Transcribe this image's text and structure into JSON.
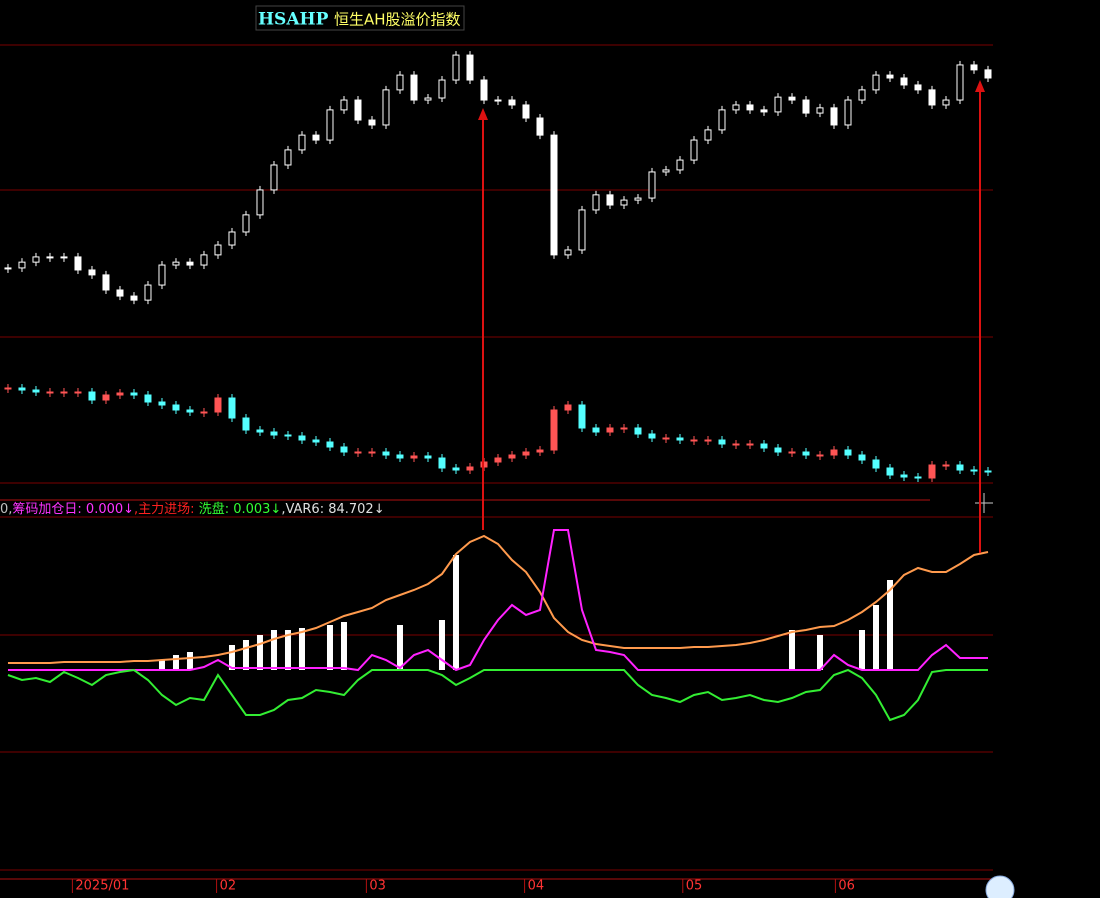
{
  "chart_data": [
    {
      "type": "candlestick",
      "title": "HSAHP",
      "subtitle": "恒生AH股溢价指数",
      "color": "#ffffff",
      "xlim": [
        -0.57,
        70.5
      ],
      "ylim": [
        0,
        100
      ],
      "values": [
        21.4,
        23.4,
        25.2,
        25.2,
        25.2,
        20.7,
        19.0,
        13.8,
        11.7,
        10.3,
        15.5,
        22.4,
        23.4,
        22.4,
        25.9,
        29.3,
        33.8,
        39.7,
        48.3,
        56.9,
        62.1,
        67.2,
        65.5,
        75.9,
        79.3,
        72.4,
        70.7,
        82.8,
        87.9,
        79.3,
        80.0,
        86.2,
        94.8,
        86.2,
        79.3,
        79.3,
        77.6,
        73.1,
        67.2,
        25.9,
        27.6,
        41.4,
        46.6,
        43.1,
        44.8,
        45.5,
        54.5,
        55.2,
        58.6,
        65.5,
        69.0,
        75.9,
        77.6,
        75.9,
        75.2,
        80.3,
        79.3,
        74.8,
        76.6,
        70.7,
        79.3,
        82.8,
        87.9,
        86.9,
        84.5,
        82.8,
        77.6,
        79.3,
        91.4,
        89.7,
        86.9
      ]
    },
    {
      "type": "candlestick",
      "up_color": "#ff5555",
      "down_color": "#54ffff",
      "xlim": [
        -0.57,
        70.5
      ],
      "ylim": [
        0,
        130
      ],
      "values": [
        112,
        110,
        108,
        108,
        108,
        108,
        100,
        105,
        107,
        105,
        98,
        95,
        90,
        88,
        88,
        102,
        82,
        70,
        68,
        65,
        64,
        60,
        58,
        53,
        48,
        48,
        48,
        45,
        42,
        44,
        42,
        32,
        30,
        33,
        38,
        42,
        45,
        48,
        50,
        90,
        95,
        72,
        68,
        72,
        72,
        66,
        62,
        62,
        60,
        60,
        60,
        56,
        56,
        56,
        52,
        48,
        48,
        45,
        45,
        50,
        45,
        40,
        32,
        25,
        23,
        22,
        35,
        35,
        30,
        29,
        28
      ]
    },
    {
      "type": "line",
      "xlim": [
        -0.57,
        70.5
      ],
      "ylim": [
        -80,
        150
      ],
      "readout": [
        "0,",
        "筹码加仓日: 0.000↓",
        ",主力进场: ",
        "洗盘: 0.003↓",
        ",VAR6: 84.702↓"
      ],
      "readout_colors": [
        "#c0c0c0",
        "#ff33ff",
        "#ff2020",
        "#33ff33",
        "#e0e0e0"
      ],
      "bars": {
        "color": "#ffffff",
        "values": [
          0,
          0,
          0,
          0,
          0,
          0,
          0,
          0,
          0,
          0,
          0,
          10,
          15,
          18,
          0,
          0,
          25,
          30,
          35,
          40,
          40,
          42,
          0,
          45,
          48,
          0,
          0,
          0,
          45,
          0,
          0,
          50,
          115,
          0,
          0,
          0,
          0,
          0,
          0,
          0,
          0,
          0,
          0,
          0,
          0,
          0,
          0,
          0,
          0,
          0,
          0,
          0,
          0,
          0,
          0,
          0,
          40,
          0,
          35,
          0,
          0,
          40,
          65,
          90,
          0,
          0,
          0,
          0,
          0,
          0,
          0
        ]
      },
      "series": [
        {
          "color": "#ff9a4d",
          "values": [
            7,
            7,
            7,
            7,
            8,
            8,
            8,
            8,
            8,
            9,
            9,
            10,
            11,
            12,
            13,
            15,
            18,
            22,
            26,
            31,
            35,
            38,
            42,
            48,
            54,
            58,
            62,
            70,
            75,
            80,
            86,
            96,
            116,
            128,
            134,
            126,
            110,
            98,
            78,
            52,
            38,
            30,
            26,
            24,
            22,
            22,
            22,
            22,
            22,
            23,
            23,
            24,
            25,
            27,
            30,
            34,
            38,
            40,
            43,
            44,
            50,
            58,
            68,
            80,
            95,
            102,
            98,
            98,
            106,
            115,
            118
          ]
        },
        {
          "color": "#ff22ff",
          "values": [
            0,
            0,
            0,
            0,
            0,
            0,
            0,
            0,
            0,
            0,
            0,
            0,
            0,
            0,
            3,
            10,
            2,
            2,
            2,
            2,
            2,
            2,
            2,
            2,
            2,
            0,
            15,
            10,
            2,
            15,
            20,
            10,
            0,
            5,
            30,
            50,
            65,
            55,
            60,
            140,
            140,
            60,
            20,
            18,
            15,
            0,
            0,
            0,
            0,
            0,
            0,
            0,
            0,
            0,
            0,
            0,
            0,
            0,
            0,
            15,
            5,
            0,
            0,
            0,
            0,
            0,
            15,
            25,
            12,
            12,
            12
          ]
        },
        {
          "color": "#33ee33",
          "values": [
            -5,
            -10,
            -8,
            -12,
            -2,
            -8,
            -15,
            -5,
            -2,
            0,
            -10,
            -25,
            -35,
            -28,
            -30,
            -5,
            -25,
            -45,
            -45,
            -40,
            -30,
            -28,
            -20,
            -22,
            -25,
            -10,
            0,
            0,
            0,
            0,
            0,
            -5,
            -15,
            -8,
            0,
            0,
            0,
            0,
            0,
            0,
            0,
            0,
            0,
            0,
            0,
            -15,
            -25,
            -28,
            -32,
            -25,
            -22,
            -30,
            -28,
            -25,
            -30,
            -32,
            -28,
            -22,
            -20,
            -5,
            0,
            -8,
            -25,
            -50,
            -45,
            -30,
            -2,
            0,
            0,
            0,
            0
          ]
        }
      ],
      "xticks": [
        {
          "value": 4.6,
          "label": "2025/01"
        },
        {
          "value": 14.9,
          "label": "02"
        },
        {
          "value": 25.6,
          "label": "03"
        },
        {
          "value": 36.9,
          "label": "04"
        },
        {
          "value": 48.2,
          "label": "05"
        },
        {
          "value": 59.1,
          "label": "06"
        }
      ]
    }
  ]
}
